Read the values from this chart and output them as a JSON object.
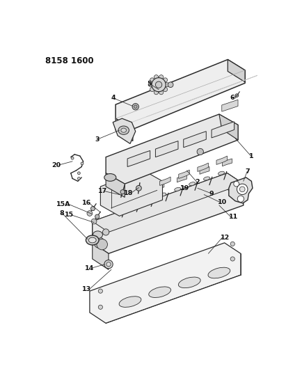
{
  "title": "8158 1600",
  "bg": "#ffffff",
  "lc": "#2a2a2a",
  "figsize": [
    4.11,
    5.33
  ],
  "dpi": 100,
  "labels": [
    [
      "1",
      380,
      210
    ],
    [
      "2",
      295,
      255
    ],
    [
      "3",
      118,
      175
    ],
    [
      "4",
      148,
      100
    ],
    [
      "5",
      215,
      75
    ],
    [
      "6",
      368,
      100
    ],
    [
      "7",
      385,
      235
    ],
    [
      "8",
      55,
      315
    ],
    [
      "9",
      320,
      278
    ],
    [
      "10",
      335,
      293
    ],
    [
      "11",
      355,
      320
    ],
    [
      "12",
      340,
      358
    ],
    [
      "13",
      105,
      455
    ],
    [
      "14",
      110,
      415
    ],
    [
      "15A",
      68,
      300
    ],
    [
      "15",
      72,
      318
    ],
    [
      "16",
      105,
      296
    ],
    [
      "17",
      135,
      275
    ],
    [
      "18",
      183,
      278
    ],
    [
      "19",
      288,
      268
    ],
    [
      "20",
      48,
      225
    ]
  ]
}
